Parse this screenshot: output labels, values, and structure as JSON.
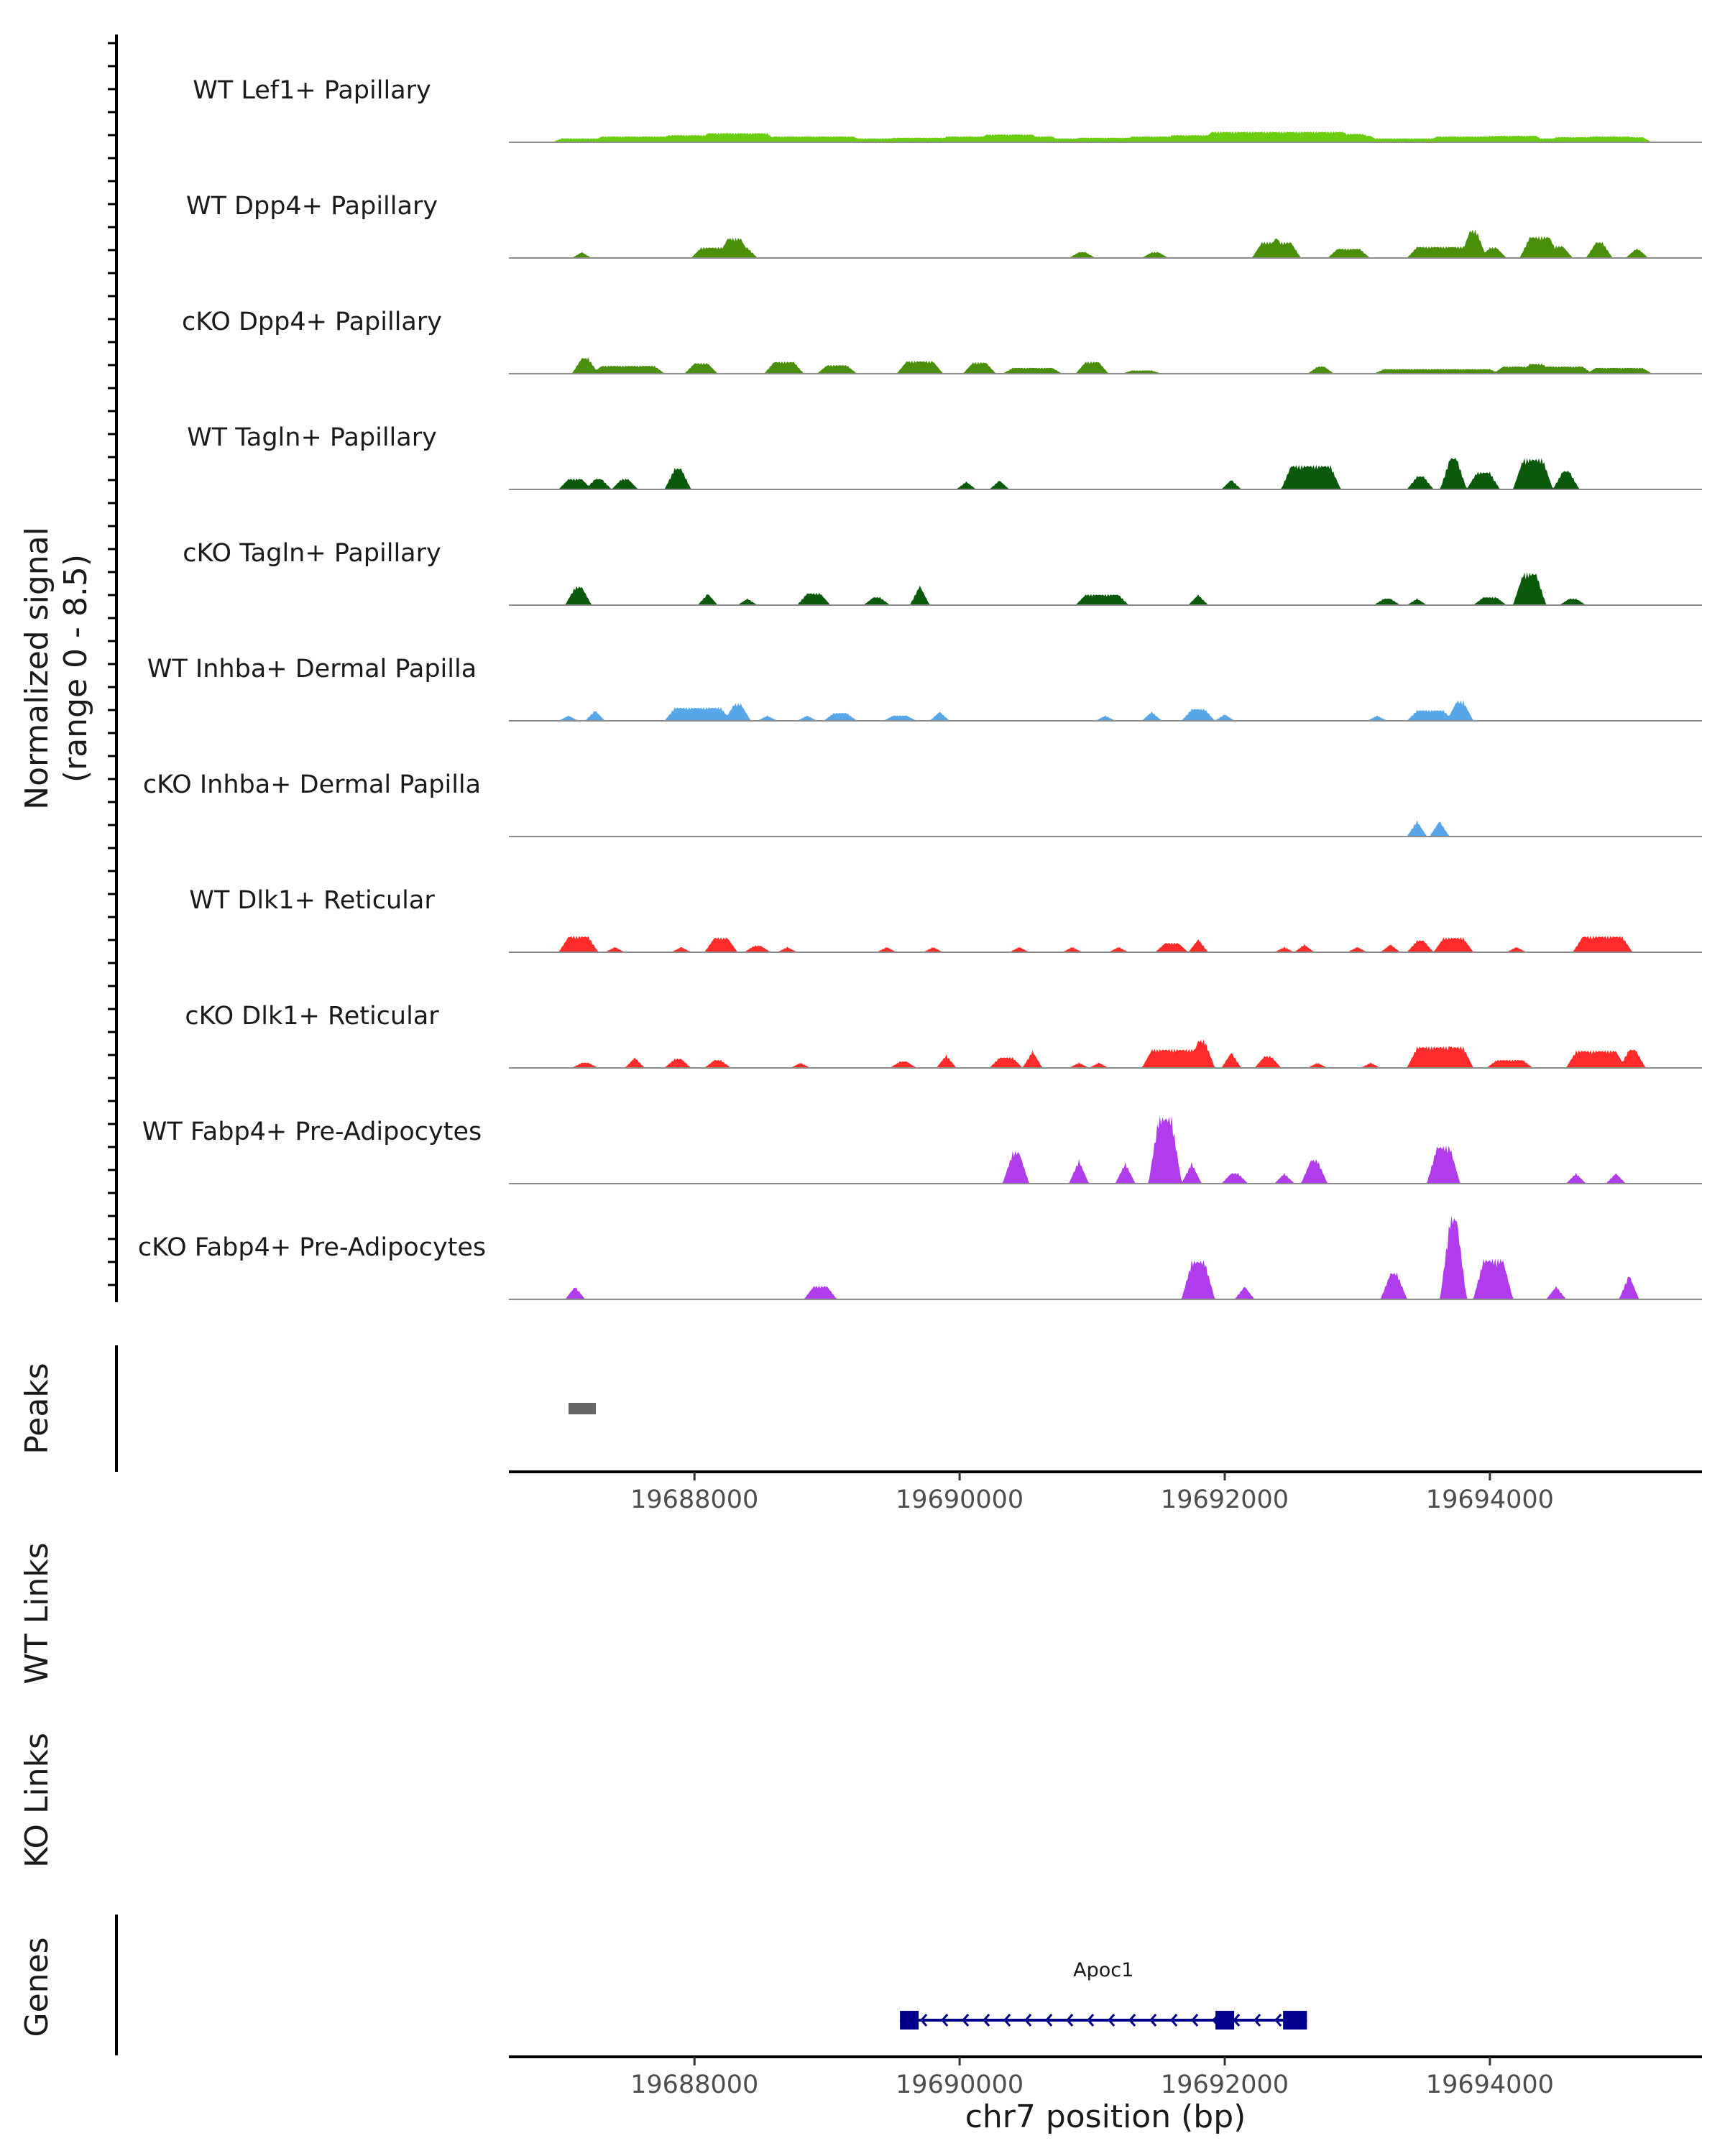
{
  "chart_data": [
    {
      "type": "area",
      "panel": "coverage",
      "ylabel": "Normalized signal",
      "ylabel_range": "(range 0 - 8.5)",
      "ylim": [
        0,
        8.5
      ],
      "xlim": [
        19686600,
        19695600
      ],
      "series": [
        {
          "name": "WT Lef1+ Papillary",
          "color": "#6acd0f",
          "peaks": [
            [
              19687000,
              19695150,
              0.3
            ],
            [
              19687300,
              19687900,
              0.45
            ],
            [
              19687800,
              19688400,
              0.55
            ],
            [
              19688100,
              19688550,
              0.7
            ],
            [
              19688600,
              19689200,
              0.45
            ],
            [
              19689500,
              19689900,
              0.35
            ],
            [
              19689900,
              19690700,
              0.45
            ],
            [
              19690200,
              19690550,
              0.6
            ],
            [
              19690900,
              19691350,
              0.35
            ],
            [
              19691300,
              19691800,
              0.45
            ],
            [
              19691600,
              19692150,
              0.55
            ],
            [
              19691900,
              19692900,
              0.8
            ],
            [
              19692300,
              19692600,
              0.5
            ],
            [
              19692500,
              19693050,
              0.65
            ],
            [
              19692850,
              19693100,
              0.5
            ],
            [
              19693600,
              19694150,
              0.45
            ],
            [
              19694000,
              19694350,
              0.5
            ],
            [
              19694500,
              19695150,
              0.4
            ],
            [
              19694750,
              19695050,
              0.45
            ]
          ]
        },
        {
          "name": "WT Dpp4+ Papillary",
          "color": "#4a8f0a",
          "peaks": [
            [
              19687150,
              19687150,
              0.45
            ],
            [
              19688050,
              19688400,
              0.8
            ],
            [
              19688250,
              19688350,
              1.5
            ],
            [
              19690900,
              19690950,
              0.45
            ],
            [
              19691450,
              19691500,
              0.45
            ],
            [
              19692280,
              19692500,
              1.2
            ],
            [
              19692380,
              19692400,
              1.5
            ],
            [
              19692850,
              19693020,
              0.7
            ],
            [
              19693450,
              19693800,
              0.85
            ],
            [
              19693850,
              19693900,
              2.1
            ],
            [
              19694000,
              19694050,
              0.8
            ],
            [
              19694300,
              19694450,
              1.6
            ],
            [
              19694500,
              19694550,
              0.9
            ],
            [
              19694800,
              19694850,
              1.2
            ],
            [
              19695100,
              19695120,
              0.7
            ]
          ]
        },
        {
          "name": "cKO Dpp4+ Papillary",
          "color": "#4a8f0a",
          "peaks": [
            [
              19687150,
              19687200,
              1.2
            ],
            [
              19687300,
              19687700,
              0.6
            ],
            [
              19688000,
              19688100,
              0.8
            ],
            [
              19688600,
              19688750,
              0.9
            ],
            [
              19689000,
              19689150,
              0.65
            ],
            [
              19689600,
              19689800,
              0.95
            ],
            [
              19690100,
              19690200,
              0.85
            ],
            [
              19690400,
              19690700,
              0.45
            ],
            [
              19690950,
              19691050,
              0.9
            ],
            [
              19691300,
              19691450,
              0.25
            ],
            [
              19692700,
              19692750,
              0.55
            ],
            [
              19693200,
              19694000,
              0.35
            ],
            [
              19694100,
              19694700,
              0.55
            ],
            [
              19694300,
              19694400,
              0.75
            ],
            [
              19694800,
              19695150,
              0.45
            ]
          ]
        },
        {
          "name": "WT Tagln+ Papillary",
          "color": "#0b5a0b",
          "peaks": [
            [
              19687050,
              19687150,
              0.8
            ],
            [
              19687250,
              19687300,
              0.8
            ],
            [
              19687450,
              19687500,
              0.8
            ],
            [
              19687850,
              19687900,
              1.6
            ],
            [
              19690050,
              19690050,
              0.6
            ],
            [
              19690300,
              19690300,
              0.7
            ],
            [
              19692050,
              19692050,
              0.75
            ],
            [
              19692500,
              19692800,
              1.8
            ],
            [
              19693450,
              19693500,
              1.0
            ],
            [
              19693700,
              19693750,
              2.4
            ],
            [
              19693900,
              19694000,
              1.3
            ],
            [
              19694250,
              19694400,
              2.3
            ],
            [
              19694550,
              19694600,
              1.4
            ]
          ]
        },
        {
          "name": "cKO Tagln+ Papillary",
          "color": "#0b5a0b",
          "peaks": [
            [
              19687100,
              19687150,
              1.4
            ],
            [
              19688100,
              19688100,
              0.9
            ],
            [
              19688400,
              19688400,
              0.5
            ],
            [
              19688850,
              19688950,
              0.9
            ],
            [
              19689350,
              19689400,
              0.6
            ],
            [
              19689700,
              19689700,
              1.5
            ],
            [
              19690950,
              19691200,
              0.8
            ],
            [
              19691800,
              19691800,
              0.8
            ],
            [
              19693200,
              19693250,
              0.5
            ],
            [
              19693450,
              19693450,
              0.5
            ],
            [
              19693950,
              19694050,
              0.6
            ],
            [
              19694250,
              19694350,
              2.4
            ],
            [
              19694600,
              19694650,
              0.5
            ]
          ]
        },
        {
          "name": "WT Inhba+ Dermal Papilla",
          "color": "#56a6e8",
          "peaks": [
            [
              19687050,
              19687050,
              0.4
            ],
            [
              19687250,
              19687250,
              0.8
            ],
            [
              19687850,
              19688200,
              1.0
            ],
            [
              19688300,
              19688350,
              1.3
            ],
            [
              19688550,
              19688550,
              0.4
            ],
            [
              19688850,
              19688850,
              0.4
            ],
            [
              19689050,
              19689150,
              0.6
            ],
            [
              19689500,
              19689600,
              0.4
            ],
            [
              19689850,
              19689850,
              0.7
            ],
            [
              19691100,
              19691100,
              0.4
            ],
            [
              19691450,
              19691450,
              0.7
            ],
            [
              19691750,
              19691850,
              0.9
            ],
            [
              19692000,
              19692000,
              0.5
            ],
            [
              19693150,
              19693150,
              0.4
            ],
            [
              19693450,
              19693650,
              0.8
            ],
            [
              19693750,
              19693800,
              1.5
            ]
          ]
        },
        {
          "name": "cKO Inhba+ Dermal Papilla",
          "color": "#56a6e8",
          "peaks": [
            [
              19693450,
              19693450,
              1.2
            ],
            [
              19693620,
              19693620,
              1.2
            ]
          ]
        },
        {
          "name": "WT Dlk1+ Reticular",
          "color": "#ff2a2a",
          "peaks": [
            [
              19687050,
              19687200,
              1.2
            ],
            [
              19687400,
              19687400,
              0.4
            ],
            [
              19687900,
              19687900,
              0.4
            ],
            [
              19688150,
              19688250,
              1.1
            ],
            [
              19688450,
              19688500,
              0.5
            ],
            [
              19688700,
              19688700,
              0.4
            ],
            [
              19689450,
              19689450,
              0.4
            ],
            [
              19689800,
              19689800,
              0.4
            ],
            [
              19690450,
              19690450,
              0.4
            ],
            [
              19690850,
              19690850,
              0.4
            ],
            [
              19691200,
              19691200,
              0.4
            ],
            [
              19691550,
              19691650,
              0.7
            ],
            [
              19691800,
              19691800,
              1.0
            ],
            [
              19692450,
              19692450,
              0.4
            ],
            [
              19692600,
              19692600,
              0.6
            ],
            [
              19693000,
              19693000,
              0.4
            ],
            [
              19693250,
              19693250,
              0.6
            ],
            [
              19693450,
              19693500,
              0.9
            ],
            [
              19693650,
              19693800,
              1.1
            ],
            [
              19694200,
              19694200,
              0.4
            ],
            [
              19694700,
              19695000,
              1.2
            ]
          ]
        },
        {
          "name": "cKO Dlk1+ Reticular",
          "color": "#ff2a2a",
          "peaks": [
            [
              19687150,
              19687200,
              0.4
            ],
            [
              19687550,
              19687550,
              0.8
            ],
            [
              19687850,
              19687900,
              0.7
            ],
            [
              19688150,
              19688200,
              0.6
            ],
            [
              19688800,
              19688800,
              0.4
            ],
            [
              19689550,
              19689600,
              0.5
            ],
            [
              19689900,
              19689900,
              1.0
            ],
            [
              19690300,
              19690400,
              0.8
            ],
            [
              19690550,
              19690550,
              1.3
            ],
            [
              19690900,
              19690900,
              0.4
            ],
            [
              19691050,
              19691050,
              0.4
            ],
            [
              19691450,
              19691850,
              1.4
            ],
            [
              19691800,
              19691850,
              2.1
            ],
            [
              19692050,
              19692050,
              1.2
            ],
            [
              19692300,
              19692350,
              0.9
            ],
            [
              19692700,
              19692700,
              0.4
            ],
            [
              19693100,
              19693100,
              0.4
            ],
            [
              19693450,
              19693800,
              1.6
            ],
            [
              19693700,
              19693700,
              1.8
            ],
            [
              19694050,
              19694250,
              0.6
            ],
            [
              19694650,
              19694950,
              1.3
            ],
            [
              19695050,
              19695100,
              1.4
            ]
          ]
        },
        {
          "name": "WT Fabp4+ Pre-Adipocytes",
          "color": "#b03ceb",
          "peaks": [
            [
              19690400,
              19690450,
              2.4
            ],
            [
              19690900,
              19690900,
              1.8
            ],
            [
              19691250,
              19691250,
              1.6
            ],
            [
              19691500,
              19691600,
              5.0
            ],
            [
              19691750,
              19691750,
              1.6
            ],
            [
              19692050,
              19692100,
              0.8
            ],
            [
              19692450,
              19692450,
              0.8
            ],
            [
              19692650,
              19692700,
              1.8
            ],
            [
              19693600,
              19693700,
              2.8
            ],
            [
              19694650,
              19694650,
              0.8
            ],
            [
              19694950,
              19694950,
              0.8
            ]
          ]
        },
        {
          "name": "cKO Fabp4+ Pre-Adipocytes",
          "color": "#b03ceb",
          "peaks": [
            [
              19687100,
              19687100,
              1.0
            ],
            [
              19688900,
              19689000,
              1.0
            ],
            [
              19691750,
              19691850,
              2.9
            ],
            [
              19692150,
              19692150,
              1.0
            ],
            [
              19693250,
              19693300,
              2.0
            ],
            [
              19693700,
              19693750,
              6.2
            ],
            [
              19693950,
              19694100,
              3.0
            ],
            [
              19694500,
              19694500,
              1.0
            ],
            [
              19695050,
              19695050,
              1.9
            ]
          ]
        }
      ]
    },
    {
      "type": "table",
      "panel": "peaks",
      "ylabel": "Peaks",
      "intervals": [
        [
          19687050,
          19687250
        ]
      ]
    },
    {
      "type": "line",
      "panel": "axis",
      "xticks": [
        19688000,
        19690000,
        19692000,
        19694000
      ],
      "xtick_labels": [
        "19688000",
        "19690000",
        "19692000",
        "19694000"
      ]
    },
    {
      "type": "table",
      "panel": "links",
      "labels": [
        "WT Links",
        "KO Links"
      ],
      "links": []
    },
    {
      "type": "table",
      "panel": "genes",
      "ylabel": "Genes",
      "xlabel": "chr7 position (bp)",
      "xticks": [
        19688000,
        19690000,
        19692000,
        19694000
      ],
      "xtick_labels": [
        "19688000",
        "19690000",
        "19692000",
        "19694000"
      ],
      "genes": [
        {
          "name": "Apoc1",
          "start": 19689550,
          "end": 19692620,
          "strand": "-",
          "exons": [
            [
              19689550,
              19689660
            ],
            [
              19691930,
              19692050
            ],
            [
              19692440,
              19692620
            ]
          ],
          "color": "#00008b"
        }
      ]
    }
  ]
}
